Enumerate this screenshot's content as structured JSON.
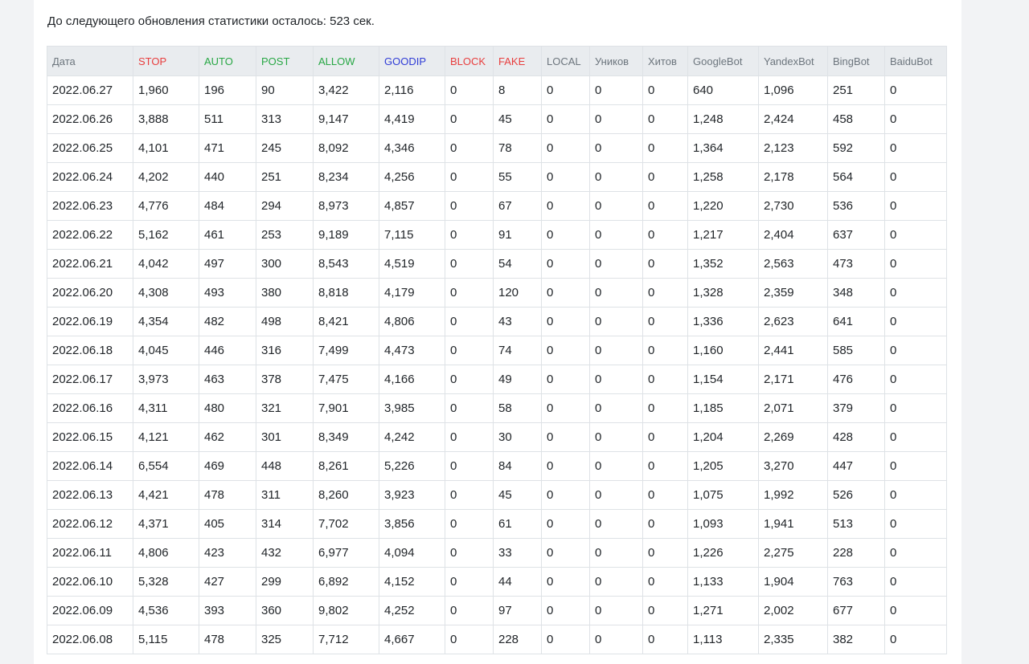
{
  "notice": "До следующего обновления статистики осталось: 523 сек.",
  "columns": [
    {
      "label": "Дата",
      "color": "#6c757d"
    },
    {
      "label": "STOP",
      "color": "#e83e3e"
    },
    {
      "label": "AUTO",
      "color": "#28a745"
    },
    {
      "label": "POST",
      "color": "#28a745"
    },
    {
      "label": "ALLOW",
      "color": "#28a745"
    },
    {
      "label": "GOODIP",
      "color": "#2f3cd6"
    },
    {
      "label": "BLOCK",
      "color": "#e83e3e"
    },
    {
      "label": "FAKE",
      "color": "#e83e3e"
    },
    {
      "label": "LOCAL",
      "color": "#6c757d"
    },
    {
      "label": "Уников",
      "color": "#6c757d"
    },
    {
      "label": "Хитов",
      "color": "#6c757d"
    },
    {
      "label": "GoogleBot",
      "color": "#6c757d"
    },
    {
      "label": "YandexBot",
      "color": "#6c757d"
    },
    {
      "label": "BingBot",
      "color": "#6c757d"
    },
    {
      "label": "BaiduBot",
      "color": "#6c757d"
    }
  ],
  "rows": [
    [
      "2022.06.27",
      "1,960",
      "196",
      "90",
      "3,422",
      "2,116",
      "0",
      "8",
      "0",
      "0",
      "0",
      "640",
      "1,096",
      "251",
      "0"
    ],
    [
      "2022.06.26",
      "3,888",
      "511",
      "313",
      "9,147",
      "4,419",
      "0",
      "45",
      "0",
      "0",
      "0",
      "1,248",
      "2,424",
      "458",
      "0"
    ],
    [
      "2022.06.25",
      "4,101",
      "471",
      "245",
      "8,092",
      "4,346",
      "0",
      "78",
      "0",
      "0",
      "0",
      "1,364",
      "2,123",
      "592",
      "0"
    ],
    [
      "2022.06.24",
      "4,202",
      "440",
      "251",
      "8,234",
      "4,256",
      "0",
      "55",
      "0",
      "0",
      "0",
      "1,258",
      "2,178",
      "564",
      "0"
    ],
    [
      "2022.06.23",
      "4,776",
      "484",
      "294",
      "8,973",
      "4,857",
      "0",
      "67",
      "0",
      "0",
      "0",
      "1,220",
      "2,730",
      "536",
      "0"
    ],
    [
      "2022.06.22",
      "5,162",
      "461",
      "253",
      "9,189",
      "7,115",
      "0",
      "91",
      "0",
      "0",
      "0",
      "1,217",
      "2,404",
      "637",
      "0"
    ],
    [
      "2022.06.21",
      "4,042",
      "497",
      "300",
      "8,543",
      "4,519",
      "0",
      "54",
      "0",
      "0",
      "0",
      "1,352",
      "2,563",
      "473",
      "0"
    ],
    [
      "2022.06.20",
      "4,308",
      "493",
      "380",
      "8,818",
      "4,179",
      "0",
      "120",
      "0",
      "0",
      "0",
      "1,328",
      "2,359",
      "348",
      "0"
    ],
    [
      "2022.06.19",
      "4,354",
      "482",
      "498",
      "8,421",
      "4,806",
      "0",
      "43",
      "0",
      "0",
      "0",
      "1,336",
      "2,623",
      "641",
      "0"
    ],
    [
      "2022.06.18",
      "4,045",
      "446",
      "316",
      "7,499",
      "4,473",
      "0",
      "74",
      "0",
      "0",
      "0",
      "1,160",
      "2,441",
      "585",
      "0"
    ],
    [
      "2022.06.17",
      "3,973",
      "463",
      "378",
      "7,475",
      "4,166",
      "0",
      "49",
      "0",
      "0",
      "0",
      "1,154",
      "2,171",
      "476",
      "0"
    ],
    [
      "2022.06.16",
      "4,311",
      "480",
      "321",
      "7,901",
      "3,985",
      "0",
      "58",
      "0",
      "0",
      "0",
      "1,185",
      "2,071",
      "379",
      "0"
    ],
    [
      "2022.06.15",
      "4,121",
      "462",
      "301",
      "8,349",
      "4,242",
      "0",
      "30",
      "0",
      "0",
      "0",
      "1,204",
      "2,269",
      "428",
      "0"
    ],
    [
      "2022.06.14",
      "6,554",
      "469",
      "448",
      "8,261",
      "5,226",
      "0",
      "84",
      "0",
      "0",
      "0",
      "1,205",
      "3,270",
      "447",
      "0"
    ],
    [
      "2022.06.13",
      "4,421",
      "478",
      "311",
      "8,260",
      "3,923",
      "0",
      "45",
      "0",
      "0",
      "0",
      "1,075",
      "1,992",
      "526",
      "0"
    ],
    [
      "2022.06.12",
      "4,371",
      "405",
      "314",
      "7,702",
      "3,856",
      "0",
      "61",
      "0",
      "0",
      "0",
      "1,093",
      "1,941",
      "513",
      "0"
    ],
    [
      "2022.06.11",
      "4,806",
      "423",
      "432",
      "6,977",
      "4,094",
      "0",
      "33",
      "0",
      "0",
      "0",
      "1,226",
      "2,275",
      "228",
      "0"
    ],
    [
      "2022.06.10",
      "5,328",
      "427",
      "299",
      "6,892",
      "4,152",
      "0",
      "44",
      "0",
      "0",
      "0",
      "1,133",
      "1,904",
      "763",
      "0"
    ],
    [
      "2022.06.09",
      "4,536",
      "393",
      "360",
      "9,802",
      "4,252",
      "0",
      "97",
      "0",
      "0",
      "0",
      "1,271",
      "2,002",
      "677",
      "0"
    ],
    [
      "2022.06.08",
      "5,115",
      "478",
      "325",
      "7,712",
      "4,667",
      "0",
      "228",
      "0",
      "0",
      "0",
      "1,113",
      "2,335",
      "382",
      "0"
    ]
  ]
}
